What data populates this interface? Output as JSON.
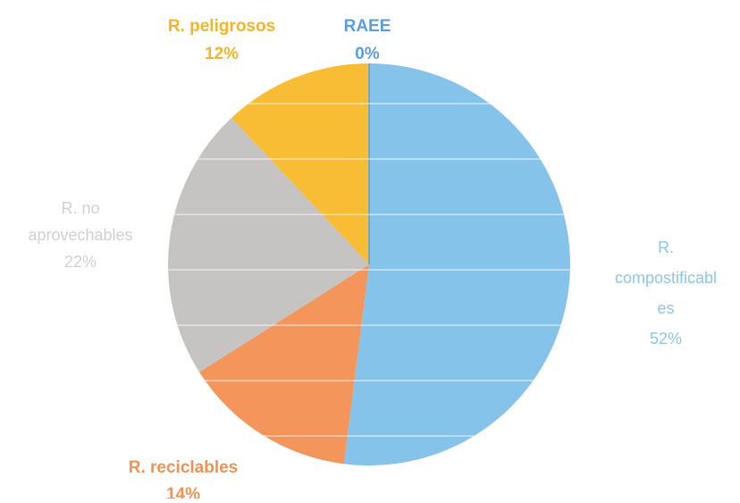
{
  "chart_data": {
    "type": "pie",
    "title": "",
    "slices": [
      {
        "name": "R. compostificables",
        "label_lines": [
          "R.",
          "compostificabl",
          "es"
        ],
        "value": 52,
        "value_label": "52%",
        "color": "#85c3ea",
        "label_style": "light"
      },
      {
        "name": "R. reciclables",
        "label_lines": [
          "R. reciclables"
        ],
        "value": 14,
        "value_label": "14%",
        "color": "#f4955b",
        "label_style": "bold"
      },
      {
        "name": "R. no aprovechables",
        "label_lines": [
          "R. no",
          "aprovechables"
        ],
        "value": 22,
        "value_label": "22%",
        "color": "#c6c4c2",
        "label_style": "light"
      },
      {
        "name": "R. peligrosos",
        "label_lines": [
          "R. peligrosos"
        ],
        "value": 12,
        "value_label": "12%",
        "color": "#f9bd35",
        "label_style": "bold"
      },
      {
        "name": "RAEE",
        "label_lines": [
          "RAEE"
        ],
        "value": 0,
        "value_label": "0%",
        "color": "#5aa0dc",
        "label_style": "bold"
      }
    ],
    "label_colors": {
      "R. compostificables": "#8cc7ee",
      "R. reciclables": "#f39353",
      "R. no aprovechables": "#d2d0ce",
      "R. peligrosos": "#f6b42a",
      "RAEE": "#5b9fdc"
    },
    "stripe_color": "#ffffff",
    "legend": "none"
  }
}
